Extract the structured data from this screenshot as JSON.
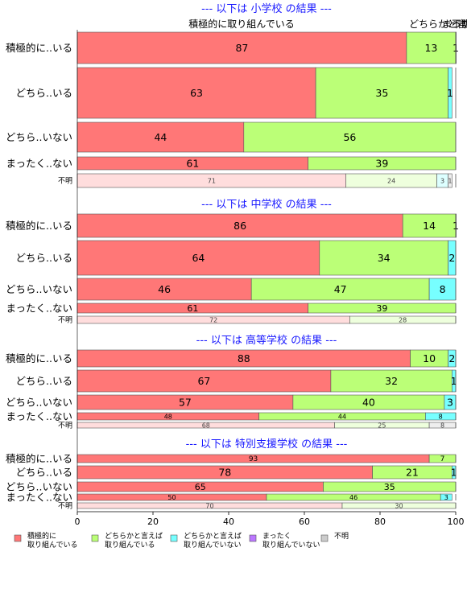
{
  "chart_data": {
    "type": "bar",
    "orientation": "horizontal",
    "stacked": true,
    "xlim": [
      0,
      100
    ],
    "x_ticks": [
      "0",
      "20",
      "40",
      "60",
      "80",
      "100"
    ],
    "top_headers": [
      "積極的に取り組んでいる",
      "どちらかと言えば",
      "まったく",
      "不明"
    ],
    "legend_position": "bottom",
    "legend": [
      {
        "line1": "積極的に",
        "line2": "取り組んでいる",
        "color": "#ff7777"
      },
      {
        "line1": "どちらかと言えば",
        "line2": "取り組んでいる",
        "color": "#bbff77"
      },
      {
        "line1": "どちらかと言えば",
        "line2": "取り組んでいない",
        "color": "#77ffff"
      },
      {
        "line1": "まったく",
        "line2": "取り組んでいない",
        "color": "#bb77ff"
      },
      {
        "line1": "不明",
        "line2": "",
        "color": "#cccccc"
      }
    ],
    "colors": {
      "full": [
        "#ff7777",
        "#bbff77",
        "#77ffff",
        "#bb77ff",
        "#cccccc"
      ],
      "pale": [
        "#ffdddd",
        "#eeffdd",
        "#ddffff",
        "#eeddff",
        "#eeeeee"
      ]
    },
    "panels": [
      {
        "title": "--- 以下は 小学校 の結果 ---",
        "rows": [
          {
            "label": "積極的に..いる",
            "values": [
              87,
              13,
              1,
              0,
              0
            ]
          },
          {
            "label": "どちら..いる",
            "values": [
              63,
              35,
              1,
              0,
              0
            ]
          },
          {
            "label": "どちら..いない",
            "values": [
              44,
              56,
              0,
              0,
              0
            ]
          },
          {
            "label": "まったく..ない",
            "values": [
              61,
              39,
              0,
              0,
              0
            ]
          },
          {
            "label": "不明",
            "values": [
              71,
              24,
              3,
              0,
              1
            ],
            "muted": true
          }
        ]
      },
      {
        "title": "--- 以下は 中学校 の結果 ---",
        "rows": [
          {
            "label": "積極的に..いる",
            "values": [
              86,
              14,
              1,
              0,
              0
            ]
          },
          {
            "label": "どちら..いる",
            "values": [
              64,
              34,
              2,
              0,
              0
            ]
          },
          {
            "label": "どちら..いない",
            "values": [
              46,
              47,
              8,
              0,
              0
            ]
          },
          {
            "label": "まったく..ない",
            "values": [
              61,
              39,
              0,
              0,
              0
            ]
          },
          {
            "label": "不明",
            "values": [
              72,
              28,
              0,
              0,
              0
            ],
            "muted": true
          }
        ]
      },
      {
        "title": "--- 以下は 高等学校 の結果 ---",
        "rows": [
          {
            "label": "積極的に..いる",
            "values": [
              88,
              10,
              2,
              0,
              0
            ]
          },
          {
            "label": "どちら..いる",
            "values": [
              67,
              32,
              1,
              0,
              0
            ]
          },
          {
            "label": "どちら..いない",
            "values": [
              57,
              40,
              3,
              0,
              0
            ]
          },
          {
            "label": "まったく..ない",
            "values": [
              48,
              44,
              8,
              0,
              0
            ]
          },
          {
            "label": "不明",
            "values": [
              68,
              25,
              0,
              0,
              8
            ],
            "muted": true
          }
        ]
      },
      {
        "title": "--- 以下は 特別支援学校 の結果 ---",
        "rows": [
          {
            "label": "積極的に..いる",
            "values": [
              93,
              7,
              0,
              0,
              0
            ]
          },
          {
            "label": "どちら..いる",
            "values": [
              78,
              21,
              1,
              0,
              0
            ]
          },
          {
            "label": "どちら..いない",
            "values": [
              65,
              35,
              0,
              0,
              0
            ]
          },
          {
            "label": "まったく..ない",
            "values": [
              50,
              46,
              3,
              0,
              0
            ]
          },
          {
            "label": "不明",
            "values": [
              70,
              30,
              0,
              0,
              0
            ],
            "muted": true
          }
        ]
      }
    ]
  }
}
